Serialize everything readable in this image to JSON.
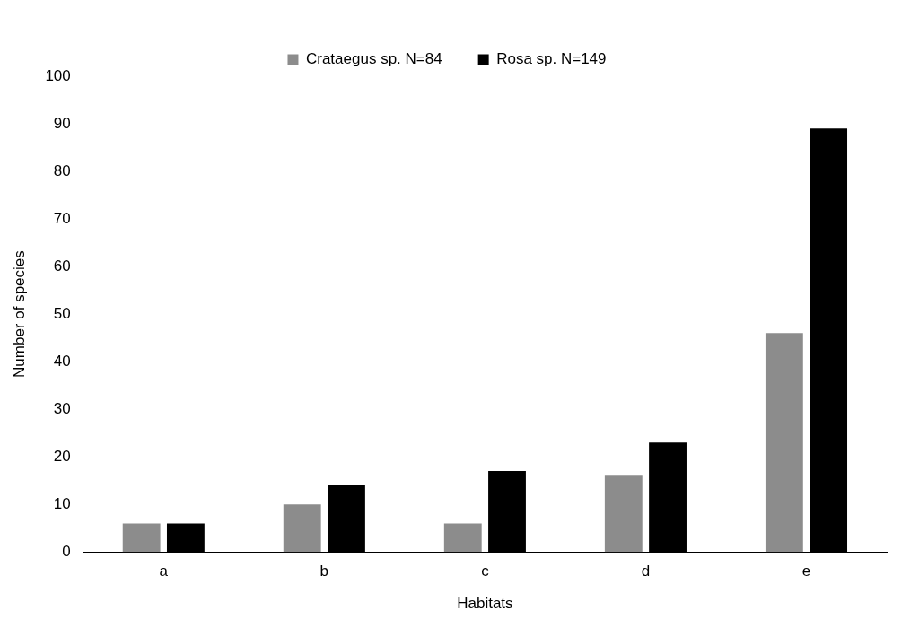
{
  "chart_data": {
    "type": "bar",
    "xlabel": "Habitats",
    "ylabel": "Number of species",
    "categories": [
      "a",
      "b",
      "c",
      "d",
      "e"
    ],
    "series": [
      {
        "name": "Crataegus sp. N=84",
        "color": "#8c8c8c",
        "values": [
          6,
          10,
          6,
          16,
          46
        ]
      },
      {
        "name": "Rosa sp. N=149",
        "color": "#000000",
        "values": [
          6,
          14,
          17,
          23,
          89
        ]
      }
    ],
    "ylim": [
      0,
      100
    ],
    "yticks": [
      0,
      10,
      20,
      30,
      40,
      50,
      60,
      70,
      80,
      90,
      100
    ],
    "grid": false,
    "legend": "top"
  }
}
